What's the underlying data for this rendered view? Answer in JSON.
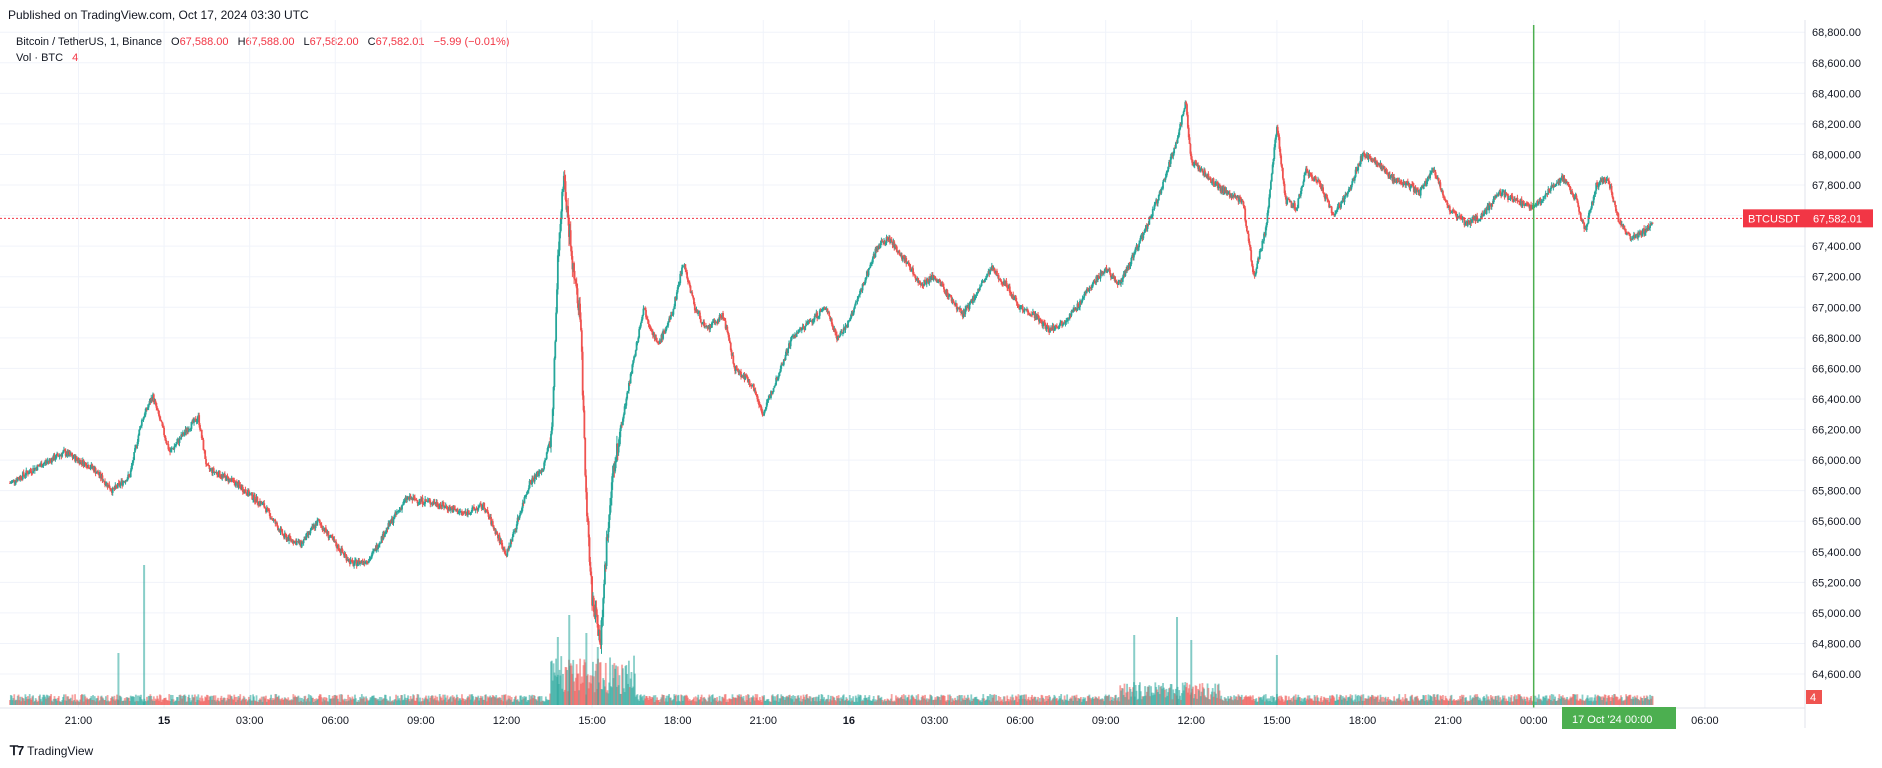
{
  "header": {
    "published": "Published on TradingView.com, Oct 17, 2024 03:30 UTC"
  },
  "legend": {
    "symbol": "Bitcoin / TetherUS, 1, Binance",
    "open_label": "O",
    "open": "67,588.00",
    "high_label": "H",
    "high": "67,588.00",
    "low_label": "L",
    "low": "67,582.00",
    "close_label": "C",
    "close": "67,582.01",
    "change": "−5.99 (−0.01%)",
    "volume_label": "Vol · BTC",
    "volume_value": "4"
  },
  "price_tag": {
    "symbol": "BTCUSDT",
    "price": "67,582.01"
  },
  "volume_tag": "4",
  "crosshair_label": "17 Oct '24   00:00",
  "footer": {
    "brand": "TradingView"
  },
  "colors": {
    "up": "#26a69a",
    "down": "#ef5350",
    "crosshair": "#4caf50",
    "last_line": "#f23645"
  },
  "chart_data": {
    "type": "candlestick",
    "symbol": "BTCUSDT",
    "interval": "1 minute",
    "y_axis": {
      "ticks": [
        "64,600.00",
        "64,800.00",
        "65,000.00",
        "65,200.00",
        "65,400.00",
        "65,600.00",
        "65,800.00",
        "66,000.00",
        "66,200.00",
        "66,400.00",
        "66,600.00",
        "66,800.00",
        "67,000.00",
        "67,200.00",
        "67,400.00",
        "67,600.00",
        "67,800.00",
        "68,000.00",
        "68,200.00",
        "68,400.00",
        "68,600.00",
        "68,800.00"
      ],
      "tick_values": [
        64600,
        64800,
        65000,
        65200,
        65400,
        65600,
        65800,
        66000,
        66200,
        66400,
        66600,
        66800,
        67000,
        67200,
        67400,
        67600,
        67800,
        68000,
        68200,
        68400,
        68600,
        68800
      ],
      "range": [
        64430,
        68880
      ]
    },
    "x_axis": {
      "ticks": [
        "21:00",
        "15",
        "03:00",
        "06:00",
        "09:00",
        "12:00",
        "15:00",
        "18:00",
        "21:00",
        "16",
        "03:00",
        "06:00",
        "09:00",
        "12:00",
        "15:00",
        "18:00",
        "21:00",
        "00:00",
        "03:00",
        "06:00"
      ],
      "tick_hours": [
        -3,
        0,
        3,
        6,
        9,
        12,
        15,
        18,
        21,
        24,
        27,
        30,
        33,
        36,
        39,
        42,
        45,
        48,
        51,
        54
      ],
      "bold_ticks": [
        "15",
        "16"
      ],
      "range_hours": [
        -5.4,
        54.6
      ]
    },
    "price_path": [
      [
        -5.4,
        65850
      ],
      [
        -4.5,
        65950
      ],
      [
        -3.5,
        66050
      ],
      [
        -2.5,
        65950
      ],
      [
        -1.8,
        65800
      ],
      [
        -1.2,
        65900
      ],
      [
        -0.8,
        66250
      ],
      [
        -0.4,
        66420
      ],
      [
        0.2,
        66050
      ],
      [
        0.8,
        66200
      ],
      [
        1.2,
        66280
      ],
      [
        1.5,
        65950
      ],
      [
        2.5,
        65850
      ],
      [
        3.5,
        65700
      ],
      [
        4.2,
        65500
      ],
      [
        4.8,
        65450
      ],
      [
        5.4,
        65600
      ],
      [
        6.0,
        65450
      ],
      [
        6.6,
        65320
      ],
      [
        7.2,
        65350
      ],
      [
        7.8,
        65550
      ],
      [
        8.5,
        65750
      ],
      [
        9.5,
        65720
      ],
      [
        10.5,
        65650
      ],
      [
        11.2,
        65700
      ],
      [
        11.7,
        65500
      ],
      [
        12.0,
        65380
      ],
      [
        12.3,
        65550
      ],
      [
        12.8,
        65850
      ],
      [
        13.3,
        65950
      ],
      [
        13.6,
        66200
      ],
      [
        13.8,
        67300
      ],
      [
        14.0,
        67850
      ],
      [
        14.3,
        67300
      ],
      [
        14.6,
        66900
      ],
      [
        14.8,
        65700
      ],
      [
        15.0,
        65100
      ],
      [
        15.3,
        64820
      ],
      [
        15.6,
        65700
      ],
      [
        15.9,
        66100
      ],
      [
        16.3,
        66500
      ],
      [
        16.8,
        67000
      ],
      [
        17.3,
        66750
      ],
      [
        17.8,
        66950
      ],
      [
        18.2,
        67300
      ],
      [
        18.6,
        67000
      ],
      [
        19.0,
        66850
      ],
      [
        19.6,
        66950
      ],
      [
        20.0,
        66600
      ],
      [
        20.6,
        66500
      ],
      [
        21.0,
        66300
      ],
      [
        21.4,
        66500
      ],
      [
        22.0,
        66800
      ],
      [
        22.6,
        66900
      ],
      [
        23.2,
        67000
      ],
      [
        23.6,
        66800
      ],
      [
        24.0,
        66900
      ],
      [
        24.5,
        67150
      ],
      [
        25.0,
        67400
      ],
      [
        25.4,
        67450
      ],
      [
        26.0,
        67300
      ],
      [
        26.5,
        67150
      ],
      [
        27.0,
        67200
      ],
      [
        27.6,
        67050
      ],
      [
        28.0,
        66950
      ],
      [
        28.5,
        67100
      ],
      [
        29.0,
        67250
      ],
      [
        29.5,
        67150
      ],
      [
        30.0,
        67000
      ],
      [
        30.5,
        66950
      ],
      [
        31.0,
        66850
      ],
      [
        31.5,
        66900
      ],
      [
        32.0,
        67000
      ],
      [
        32.5,
        67150
      ],
      [
        33.0,
        67250
      ],
      [
        33.5,
        67150
      ],
      [
        34.0,
        67350
      ],
      [
        34.6,
        67600
      ],
      [
        35.0,
        67800
      ],
      [
        35.5,
        68100
      ],
      [
        35.8,
        68350
      ],
      [
        36.0,
        67950
      ],
      [
        36.6,
        67850
      ],
      [
        37.2,
        67750
      ],
      [
        37.8,
        67700
      ],
      [
        38.2,
        67200
      ],
      [
        38.6,
        67500
      ],
      [
        39.0,
        68200
      ],
      [
        39.3,
        67700
      ],
      [
        39.7,
        67650
      ],
      [
        40.0,
        67900
      ],
      [
        40.5,
        67800
      ],
      [
        41.0,
        67600
      ],
      [
        41.5,
        67750
      ],
      [
        42.0,
        68000
      ],
      [
        42.5,
        67950
      ],
      [
        43.0,
        67850
      ],
      [
        43.6,
        67800
      ],
      [
        44.0,
        67750
      ],
      [
        44.5,
        67900
      ],
      [
        45.0,
        67650
      ],
      [
        45.6,
        67550
      ],
      [
        46.2,
        67600
      ],
      [
        46.8,
        67750
      ],
      [
        47.4,
        67700
      ],
      [
        48.0,
        67650
      ],
      [
        48.5,
        67750
      ],
      [
        49.0,
        67850
      ],
      [
        49.5,
        67700
      ],
      [
        49.8,
        67500
      ],
      [
        50.2,
        67800
      ],
      [
        50.6,
        67850
      ],
      [
        51.0,
        67550
      ],
      [
        51.4,
        67450
      ],
      [
        51.9,
        67500
      ],
      [
        52.2,
        67580
      ]
    ],
    "volume_spikes": [
      {
        "hour": 13.8,
        "volume_px": 68
      },
      {
        "hour": 14.2,
        "volume_px": 90
      },
      {
        "hour": 14.8,
        "volume_px": 72
      },
      {
        "hour": 15.2,
        "volume_px": 58
      },
      {
        "hour": -1.6,
        "volume_px": 52
      },
      {
        "hour": -0.7,
        "volume_px": 140
      },
      {
        "hour": 35.5,
        "volume_px": 88
      },
      {
        "hour": 36.0,
        "volume_px": 65
      },
      {
        "hour": 34.0,
        "volume_px": 70
      },
      {
        "hour": 39.0,
        "volume_px": 50
      }
    ],
    "last_price": 67582.01,
    "crosshair_hour": 48
  }
}
